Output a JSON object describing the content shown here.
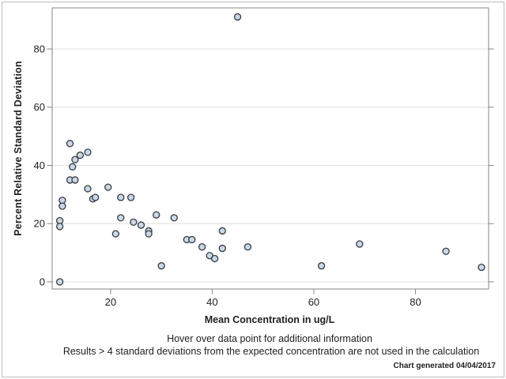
{
  "chart_data": {
    "type": "scatter",
    "title": "",
    "xlabel": "Mean Concentration in ug/L",
    "ylabel": "Percent Relative Standard Deviation",
    "x_ticks": [
      20,
      40,
      60,
      80
    ],
    "y_ticks": [
      0,
      20,
      40,
      60,
      80
    ],
    "xlim": [
      8.5,
      94.4
    ],
    "ylim": [
      -2.45,
      94.1
    ],
    "grid": "horizontal-only",
    "legend": "none",
    "marker": "circle",
    "points": [
      [
        12,
        47.5
      ],
      [
        13,
        42
      ],
      [
        14,
        43.5
      ],
      [
        15.5,
        44.5
      ],
      [
        12.5,
        39.5
      ],
      [
        12,
        35
      ],
      [
        13,
        35
      ],
      [
        15.5,
        32
      ],
      [
        19.5,
        32.5
      ],
      [
        16.5,
        28.5
      ],
      [
        17,
        29
      ],
      [
        10.5,
        28
      ],
      [
        10.5,
        26
      ],
      [
        10,
        21
      ],
      [
        10,
        19
      ],
      [
        10,
        0
      ],
      [
        22,
        29
      ],
      [
        24,
        29
      ],
      [
        22,
        22
      ],
      [
        24.5,
        20.5
      ],
      [
        26,
        19.5
      ],
      [
        21,
        16.5
      ],
      [
        27.5,
        17.5
      ],
      [
        27.5,
        16.5
      ],
      [
        29,
        23
      ],
      [
        32.5,
        22
      ],
      [
        30,
        5.5
      ],
      [
        35,
        14.5
      ],
      [
        36,
        14.5
      ],
      [
        38,
        12
      ],
      [
        39.5,
        9
      ],
      [
        40.5,
        8
      ],
      [
        42,
        17.5
      ],
      [
        42,
        11.5
      ],
      [
        45,
        91
      ],
      [
        47,
        12
      ],
      [
        61.5,
        5.5
      ],
      [
        69,
        13
      ],
      [
        86,
        10.5
      ],
      [
        93,
        5
      ]
    ],
    "annotations": {
      "footnote1": "Hover over data point for additional information",
      "footnote2": "Results > 4 standard deviations from the expected concentration are not used in the calculation",
      "generated_note": "Chart generated 04/04/2017"
    }
  },
  "colors": {
    "marker_fill": "#ccd7e6",
    "marker_stroke": "#333b44",
    "frame": "#858585",
    "grid": "#e0e0e0",
    "tick": "#858585",
    "text": "#1f1f1f",
    "border": "#bcbcbc",
    "background": "#ffffff"
  }
}
